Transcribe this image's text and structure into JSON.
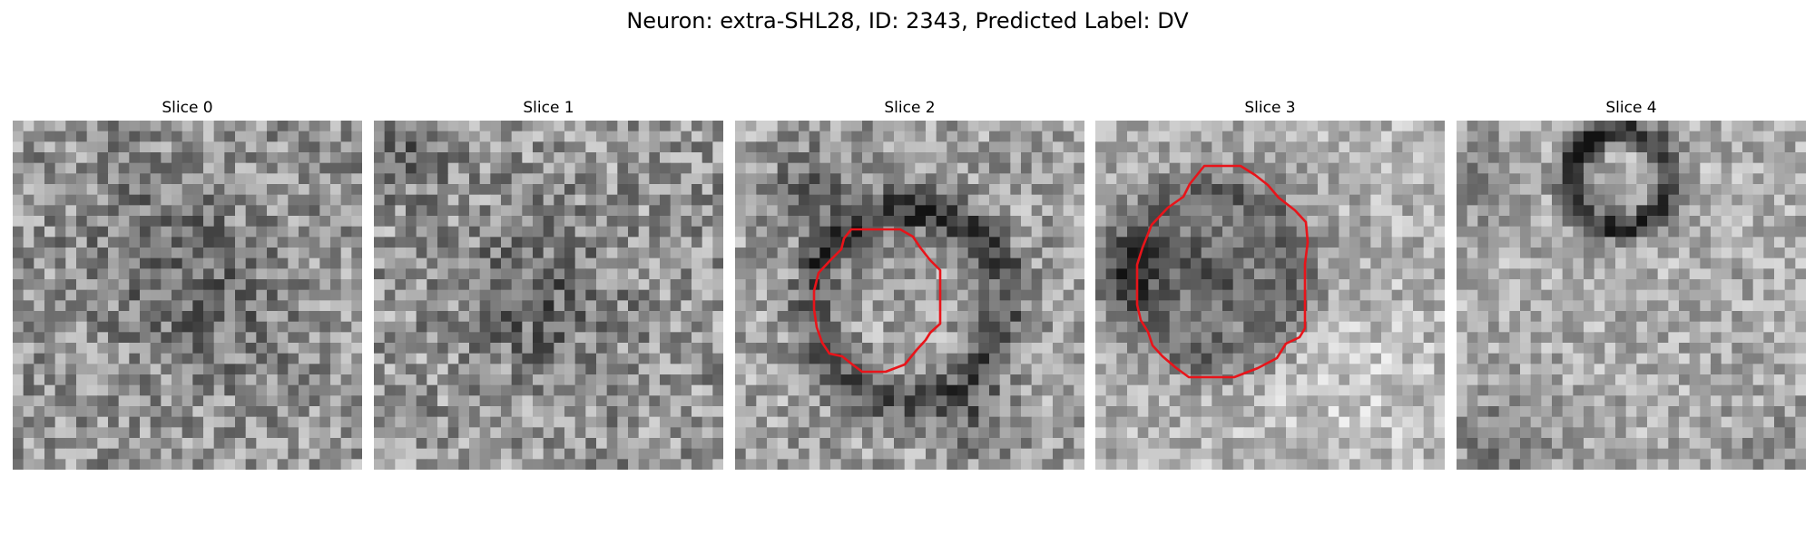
{
  "figure": {
    "title": "Neuron: extra-SHL28, ID: 2343, Predicted Label: DV"
  },
  "panels": [
    {
      "title": "Slice 0",
      "has_contour": false
    },
    {
      "title": "Slice 1",
      "has_contour": false
    },
    {
      "title": "Slice 2",
      "has_contour": true
    },
    {
      "title": "Slice 3",
      "has_contour": true
    },
    {
      "title": "Slice 4",
      "has_contour": false
    }
  ],
  "colors": {
    "contour": "#e8141a",
    "background": "#ffffff"
  }
}
